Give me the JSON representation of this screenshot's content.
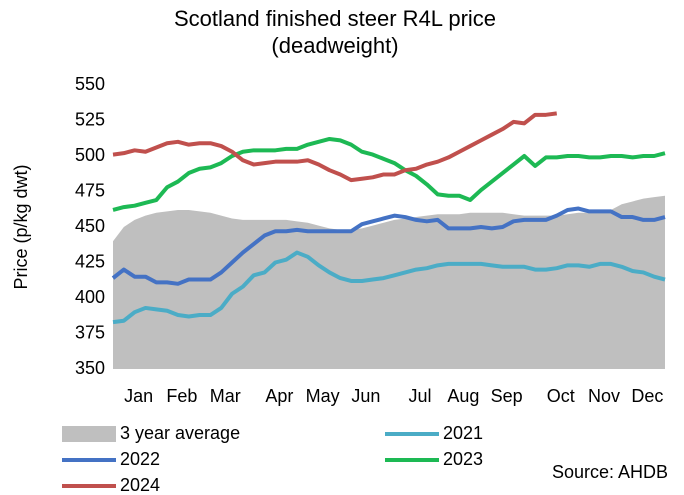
{
  "chart_data": {
    "type": "line",
    "title": [
      "Scotland finished steer R4L price",
      "(deadweight)"
    ],
    "y_label": "Price (p/kg dwt)",
    "source": "Source: AHDB",
    "categories": [
      null,
      null,
      "Jan",
      null,
      null,
      null,
      "Feb",
      null,
      null,
      null,
      "Mar",
      null,
      null,
      null,
      null,
      "Apr",
      null,
      null,
      null,
      "May",
      null,
      null,
      null,
      "Jun",
      null,
      null,
      null,
      null,
      "Jul",
      null,
      null,
      null,
      "Aug",
      null,
      null,
      null,
      "Sep",
      null,
      null,
      null,
      null,
      "Oct",
      null,
      null,
      null,
      "Nov",
      null,
      null,
      null,
      "Dec",
      null,
      null
    ],
    "ylim": [
      350,
      550
    ],
    "yticks": [
      350,
      375,
      400,
      425,
      450,
      475,
      500,
      525,
      550
    ],
    "series": [
      {
        "name": "3 year average",
        "type": "area",
        "color": "#bfbfbf",
        "values": [
          440,
          450,
          455,
          458,
          460,
          461,
          462,
          462,
          461,
          460,
          458,
          456,
          455,
          455,
          455,
          455,
          455,
          454,
          453,
          451,
          449,
          448,
          448,
          449,
          451,
          453,
          455,
          456,
          457,
          458,
          459,
          459,
          459,
          460,
          460,
          460,
          460,
          459,
          458,
          458,
          458,
          458,
          459,
          460,
          460,
          460,
          462,
          466,
          468,
          470,
          471,
          472
        ]
      },
      {
        "name": "2021",
        "type": "line",
        "color": "#4bacc6",
        "values": [
          383,
          384,
          390,
          393,
          392,
          391,
          388,
          387,
          388,
          388,
          393,
          403,
          408,
          416,
          418,
          425,
          427,
          432,
          429,
          423,
          418,
          414,
          412,
          412,
          413,
          414,
          416,
          418,
          420,
          421,
          423,
          424,
          424,
          424,
          424,
          423,
          422,
          422,
          422,
          420,
          420,
          421,
          423,
          423,
          422,
          424,
          424,
          422,
          419,
          418,
          415,
          413
        ]
      },
      {
        "name": "2022",
        "type": "line",
        "color": "#4472c4",
        "values": [
          414,
          420,
          415,
          415,
          411,
          411,
          410,
          413,
          413,
          413,
          418,
          425,
          432,
          438,
          444,
          447,
          447,
          448,
          447,
          447,
          447,
          447,
          447,
          452,
          454,
          456,
          458,
          457,
          455,
          454,
          455,
          449,
          449,
          449,
          450,
          449,
          450,
          454,
          455,
          455,
          455,
          458,
          462,
          463,
          461,
          461,
          461,
          457,
          457,
          455,
          455,
          457
        ]
      },
      {
        "name": "2023",
        "type": "line",
        "color": "#1db954",
        "values": [
          462,
          464,
          465,
          467,
          469,
          478,
          482,
          488,
          491,
          492,
          495,
          500,
          503,
          504,
          504,
          504,
          505,
          505,
          508,
          510,
          512,
          511,
          508,
          503,
          501,
          498,
          495,
          490,
          486,
          480,
          473,
          472,
          472,
          469,
          476,
          482,
          488,
          494,
          500,
          493,
          499,
          499,
          500,
          500,
          499,
          499,
          500,
          500,
          499,
          500,
          500,
          502
        ]
      },
      {
        "name": "2024",
        "type": "line",
        "color": "#c0504d",
        "values": [
          501,
          502,
          504,
          503,
          506,
          509,
          510,
          508,
          509,
          509,
          507,
          503,
          497,
          494,
          495,
          496,
          496,
          496,
          497,
          494,
          490,
          487,
          483,
          484,
          485,
          487,
          487,
          490,
          491,
          494,
          496,
          499,
          503,
          507,
          511,
          515,
          519,
          524,
          523,
          529,
          529,
          530,
          null,
          null,
          null,
          null,
          null,
          null,
          null,
          null,
          null,
          null
        ]
      }
    ]
  }
}
